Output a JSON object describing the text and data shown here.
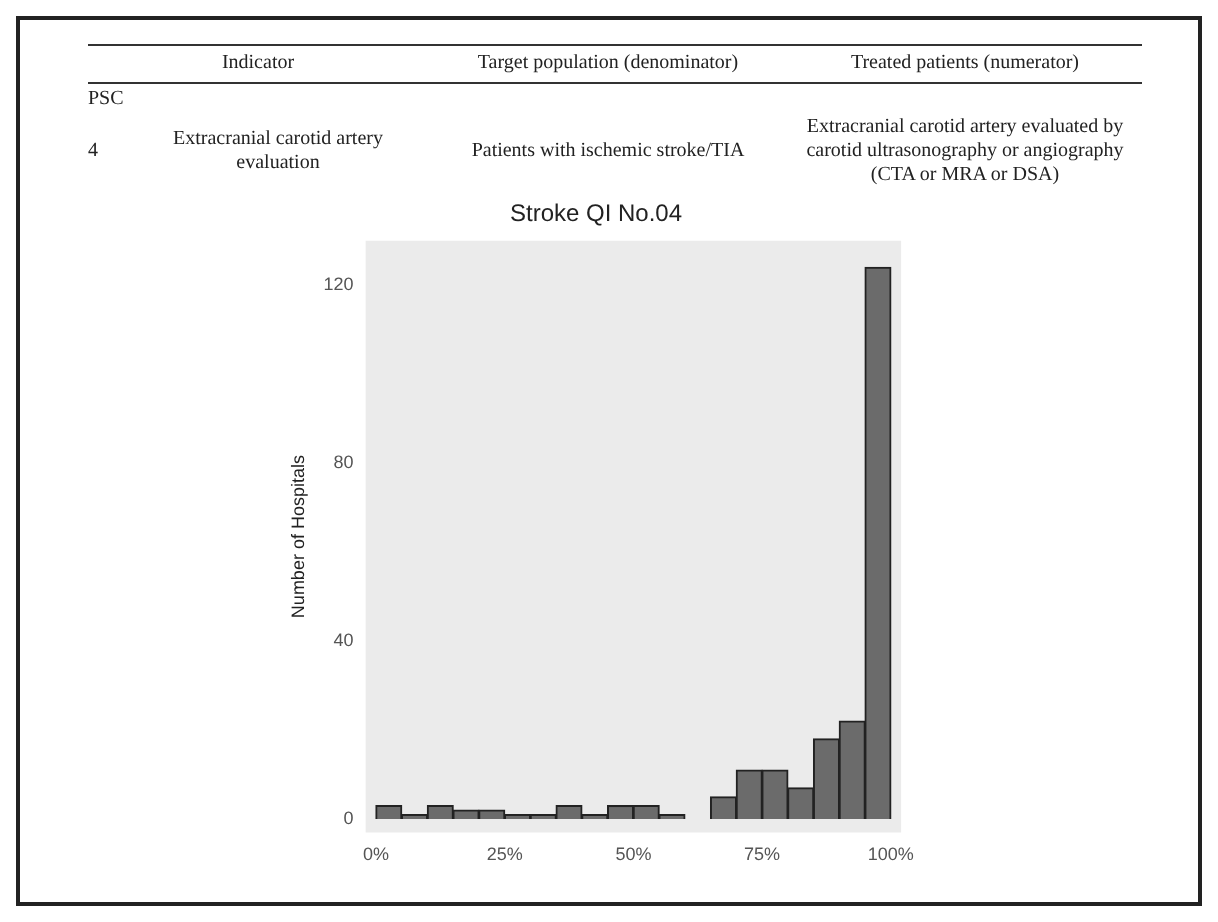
{
  "chart_data": {
    "type": "histogram",
    "title": "Stroke QI No.04",
    "ylabel": "Number of Hospitals",
    "bins": [
      0,
      5,
      10,
      15,
      20,
      25,
      30,
      35,
      40,
      45,
      50,
      55,
      60,
      65,
      70,
      75,
      80,
      85,
      90,
      95,
      100
    ],
    "values": [
      3,
      1,
      3,
      2,
      2,
      1,
      1,
      3,
      1,
      3,
      3,
      1,
      0,
      5,
      11,
      11,
      7,
      18,
      22,
      124
    ],
    "color": "#6b6b6b",
    "xlim": [
      -2,
      102
    ],
    "xticks": [
      {
        "value": 0,
        "label": "0%"
      },
      {
        "value": 25,
        "label": "25%"
      },
      {
        "value": 50,
        "label": "50%"
      },
      {
        "value": 75,
        "label": "75%"
      },
      {
        "value": 100,
        "label": "100%"
      }
    ],
    "ylim": [
      -3,
      130
    ],
    "yticks": [
      0,
      40,
      80,
      120
    ],
    "grid": false,
    "legend": false,
    "annotations": [
      "Indicator",
      "Target population (denominator)",
      "Treated patients (numerator)",
      "PSC",
      "4",
      "Extracranial carotid artery evaluation",
      "Patients with ischemic stroke/TIA",
      "Extracranial carotid artery evaluated by carotid ultrasonography or angiography (CTA or MRA or DSA)"
    ]
  }
}
